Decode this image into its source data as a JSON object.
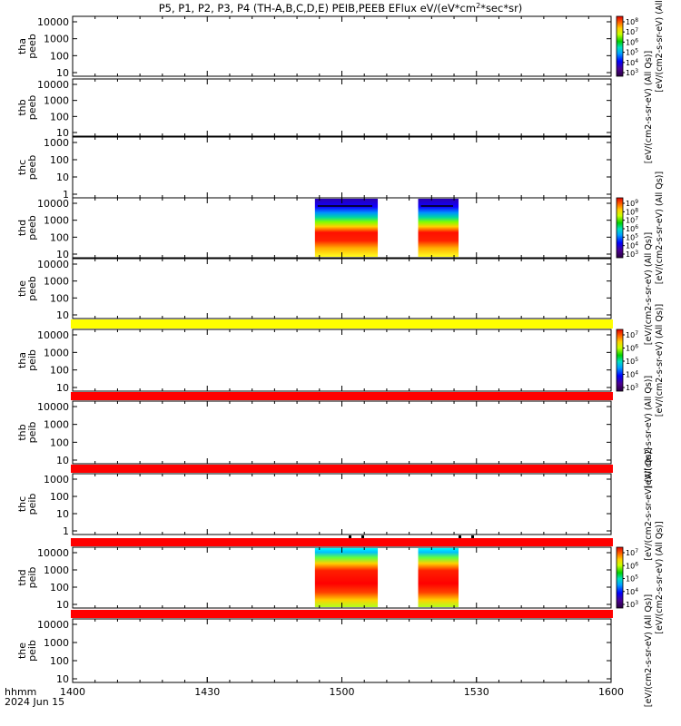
{
  "title_plain": "P5, P1, P2, P3, P4 (TH-A,B,C,D,E) PEIB,PEEB EFlux eV/(eV*cm",
  "title_sup": "2",
  "title_rest": "*sec*sr)",
  "footer": {
    "format_label": "hhmm",
    "date_label": "2024 Jun 15"
  },
  "time_ticks": [
    "1400",
    "1430",
    "1500",
    "1530",
    "1600"
  ],
  "colors": {
    "electron_bar": "#ffff00",
    "ion_bar": "#ff0000",
    "axis": "#000000"
  },
  "chart_data": {
    "type": "heatmap",
    "x_range": [
      "1400",
      "1600"
    ],
    "panels": [
      {
        "label_top": "tha",
        "label_bottom": "peeb",
        "y_ticks": [
          "10",
          "100",
          "1000",
          "10000"
        ],
        "data_blocks": []
      },
      {
        "label_top": "thb",
        "label_bottom": "peeb",
        "y_ticks": [
          "10",
          "100",
          "1000",
          "10000"
        ],
        "data_blocks": []
      },
      {
        "label_top": "thc",
        "label_bottom": "peeb",
        "y_ticks": [
          "1",
          "10",
          "100",
          "1000"
        ],
        "data_blocks": []
      },
      {
        "label_top": "thd",
        "label_bottom": "peeb",
        "y_ticks": [
          "10",
          "100",
          "1000",
          "10000"
        ],
        "data_blocks": [
          {
            "start": "1454",
            "end": "1508"
          },
          {
            "start": "1517",
            "end": "1526"
          }
        ]
      },
      {
        "label_top": "the",
        "label_bottom": "peeb",
        "y_ticks": [
          "10",
          "100",
          "1000",
          "10000"
        ],
        "data_blocks": []
      },
      {
        "label_top": "tha",
        "label_bottom": "peib",
        "y_ticks": [
          "10",
          "100",
          "1000",
          "10000"
        ],
        "data_blocks": []
      },
      {
        "label_top": "thb",
        "label_bottom": "peib",
        "y_ticks": [
          "10",
          "100",
          "1000",
          "10000"
        ],
        "data_blocks": []
      },
      {
        "label_top": "thc",
        "label_bottom": "peib",
        "y_ticks": [
          "1",
          "10",
          "100",
          "1000"
        ],
        "data_blocks": []
      },
      {
        "label_top": "thd",
        "label_bottom": "peib",
        "y_ticks": [
          "10",
          "100",
          "1000",
          "10000"
        ],
        "data_blocks": [
          {
            "start": "1454",
            "end": "1508"
          },
          {
            "start": "1517",
            "end": "1526"
          }
        ]
      },
      {
        "label_top": "the",
        "label_bottom": "peib",
        "y_ticks": [
          "10",
          "100",
          "1000",
          "10000"
        ],
        "data_blocks": []
      }
    ],
    "colorbars": [
      {
        "title": "[eV/(cm2-s-sr-eV) (All",
        "ticks": [
          {
            "base": "10",
            "exp": "8"
          },
          {
            "base": "10",
            "exp": "7"
          },
          {
            "base": "10",
            "exp": "6"
          },
          {
            "base": "10",
            "exp": "5"
          },
          {
            "base": "10",
            "exp": "4"
          },
          {
            "base": "10",
            "exp": "3"
          }
        ]
      },
      {
        "title": "[eV/(cm2-s-sr-eV) (All Qs)]",
        "ticks": []
      },
      {
        "title": "[eV/(cm2-s-sr-eV) (All Qs)]",
        "ticks": [
          {
            "base": "10",
            "exp": "9"
          },
          {
            "base": "10",
            "exp": "8"
          },
          {
            "base": "10",
            "exp": "7"
          },
          {
            "base": "10",
            "exp": "6"
          },
          {
            "base": "10",
            "exp": "5"
          },
          {
            "base": "10",
            "exp": "4"
          },
          {
            "base": "10",
            "exp": "3"
          }
        ]
      },
      {
        "title": "[eV/(cm2-s-sr-eV) (All Qs)]",
        "ticks": []
      },
      {
        "title": "[eV/(cm2-s-sr-eV) (All Qs)]",
        "ticks": [
          {
            "base": "10",
            "exp": "7"
          },
          {
            "base": "10",
            "exp": "6"
          },
          {
            "base": "10",
            "exp": "5"
          },
          {
            "base": "10",
            "exp": "4"
          },
          {
            "base": "10",
            "exp": "3"
          }
        ]
      },
      {
        "title": "[eV/(cm2-s-sr-eV) (All Qs)]",
        "ticks": []
      },
      {
        "title": "[eV/(cm2-s-sr-eV) (All Qs)]",
        "ticks": []
      },
      {
        "title": "[eV/(cm2-s-sr-eV) (All Qs)]",
        "ticks": [
          {
            "base": "10",
            "exp": "7"
          },
          {
            "base": "10",
            "exp": "6"
          },
          {
            "base": "10",
            "exp": "5"
          },
          {
            "base": "10",
            "exp": "4"
          },
          {
            "base": "10",
            "exp": "3"
          }
        ]
      },
      {
        "title": "[eV/(cm2-s-sr-eV) (All Qs)]",
        "ticks": []
      }
    ]
  }
}
